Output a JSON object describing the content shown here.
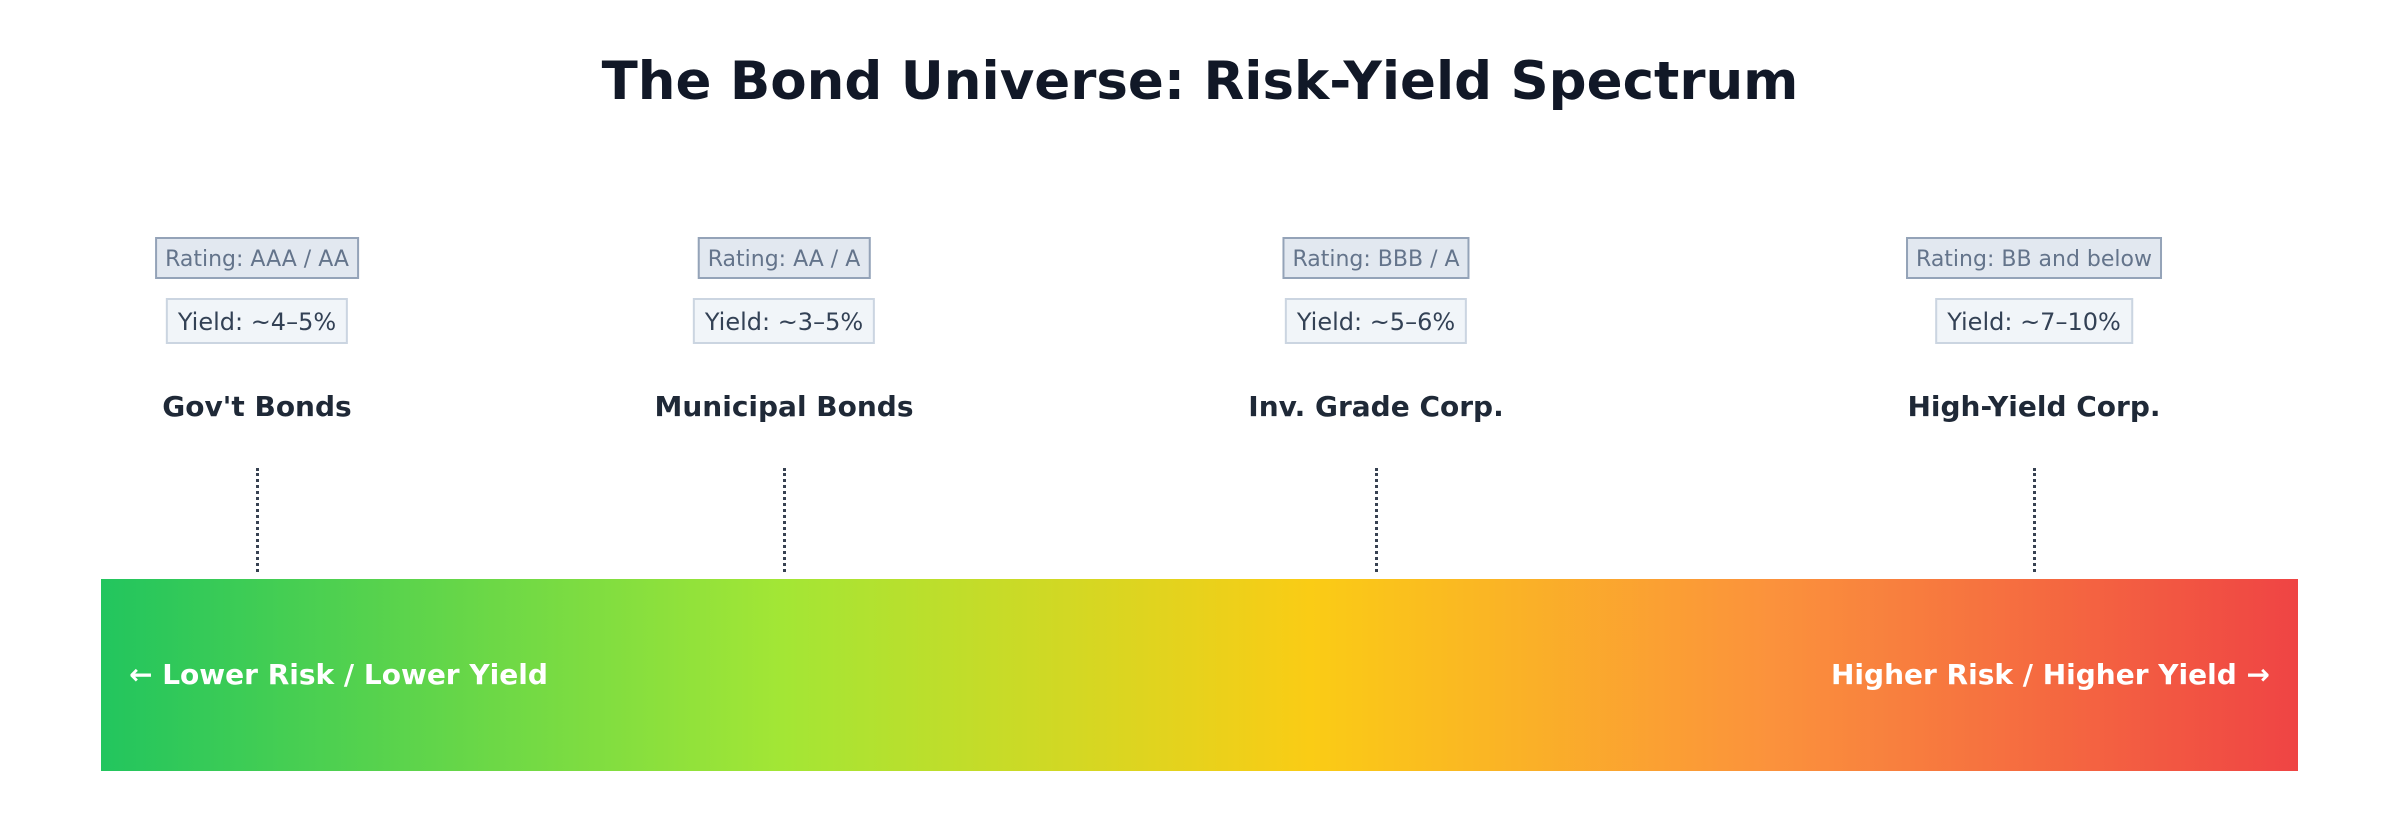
{
  "title": "The Bond Universe: Risk-Yield Spectrum",
  "categories": [
    {
      "name": "Gov't Bonds",
      "rating": "Rating: AAA / AA",
      "yield": "Yield: ~4–5%"
    },
    {
      "name": "Municipal Bonds",
      "rating": "Rating: AA / A",
      "yield": "Yield: ~3–5%"
    },
    {
      "name": "Inv. Grade Corp.",
      "rating": "Rating: BBB / A",
      "yield": "Yield: ~5–6%"
    },
    {
      "name": "High-Yield Corp.",
      "rating": "Rating: BB and below",
      "yield": "Yield: ~7–10%"
    }
  ],
  "spectrum": {
    "left_label": "← Lower Risk / Lower Yield",
    "right_label": "Higher Risk / Higher Yield →",
    "colors": [
      "#22c55e",
      "#a3e635",
      "#facc15",
      "#fb923c",
      "#ef4444"
    ]
  }
}
